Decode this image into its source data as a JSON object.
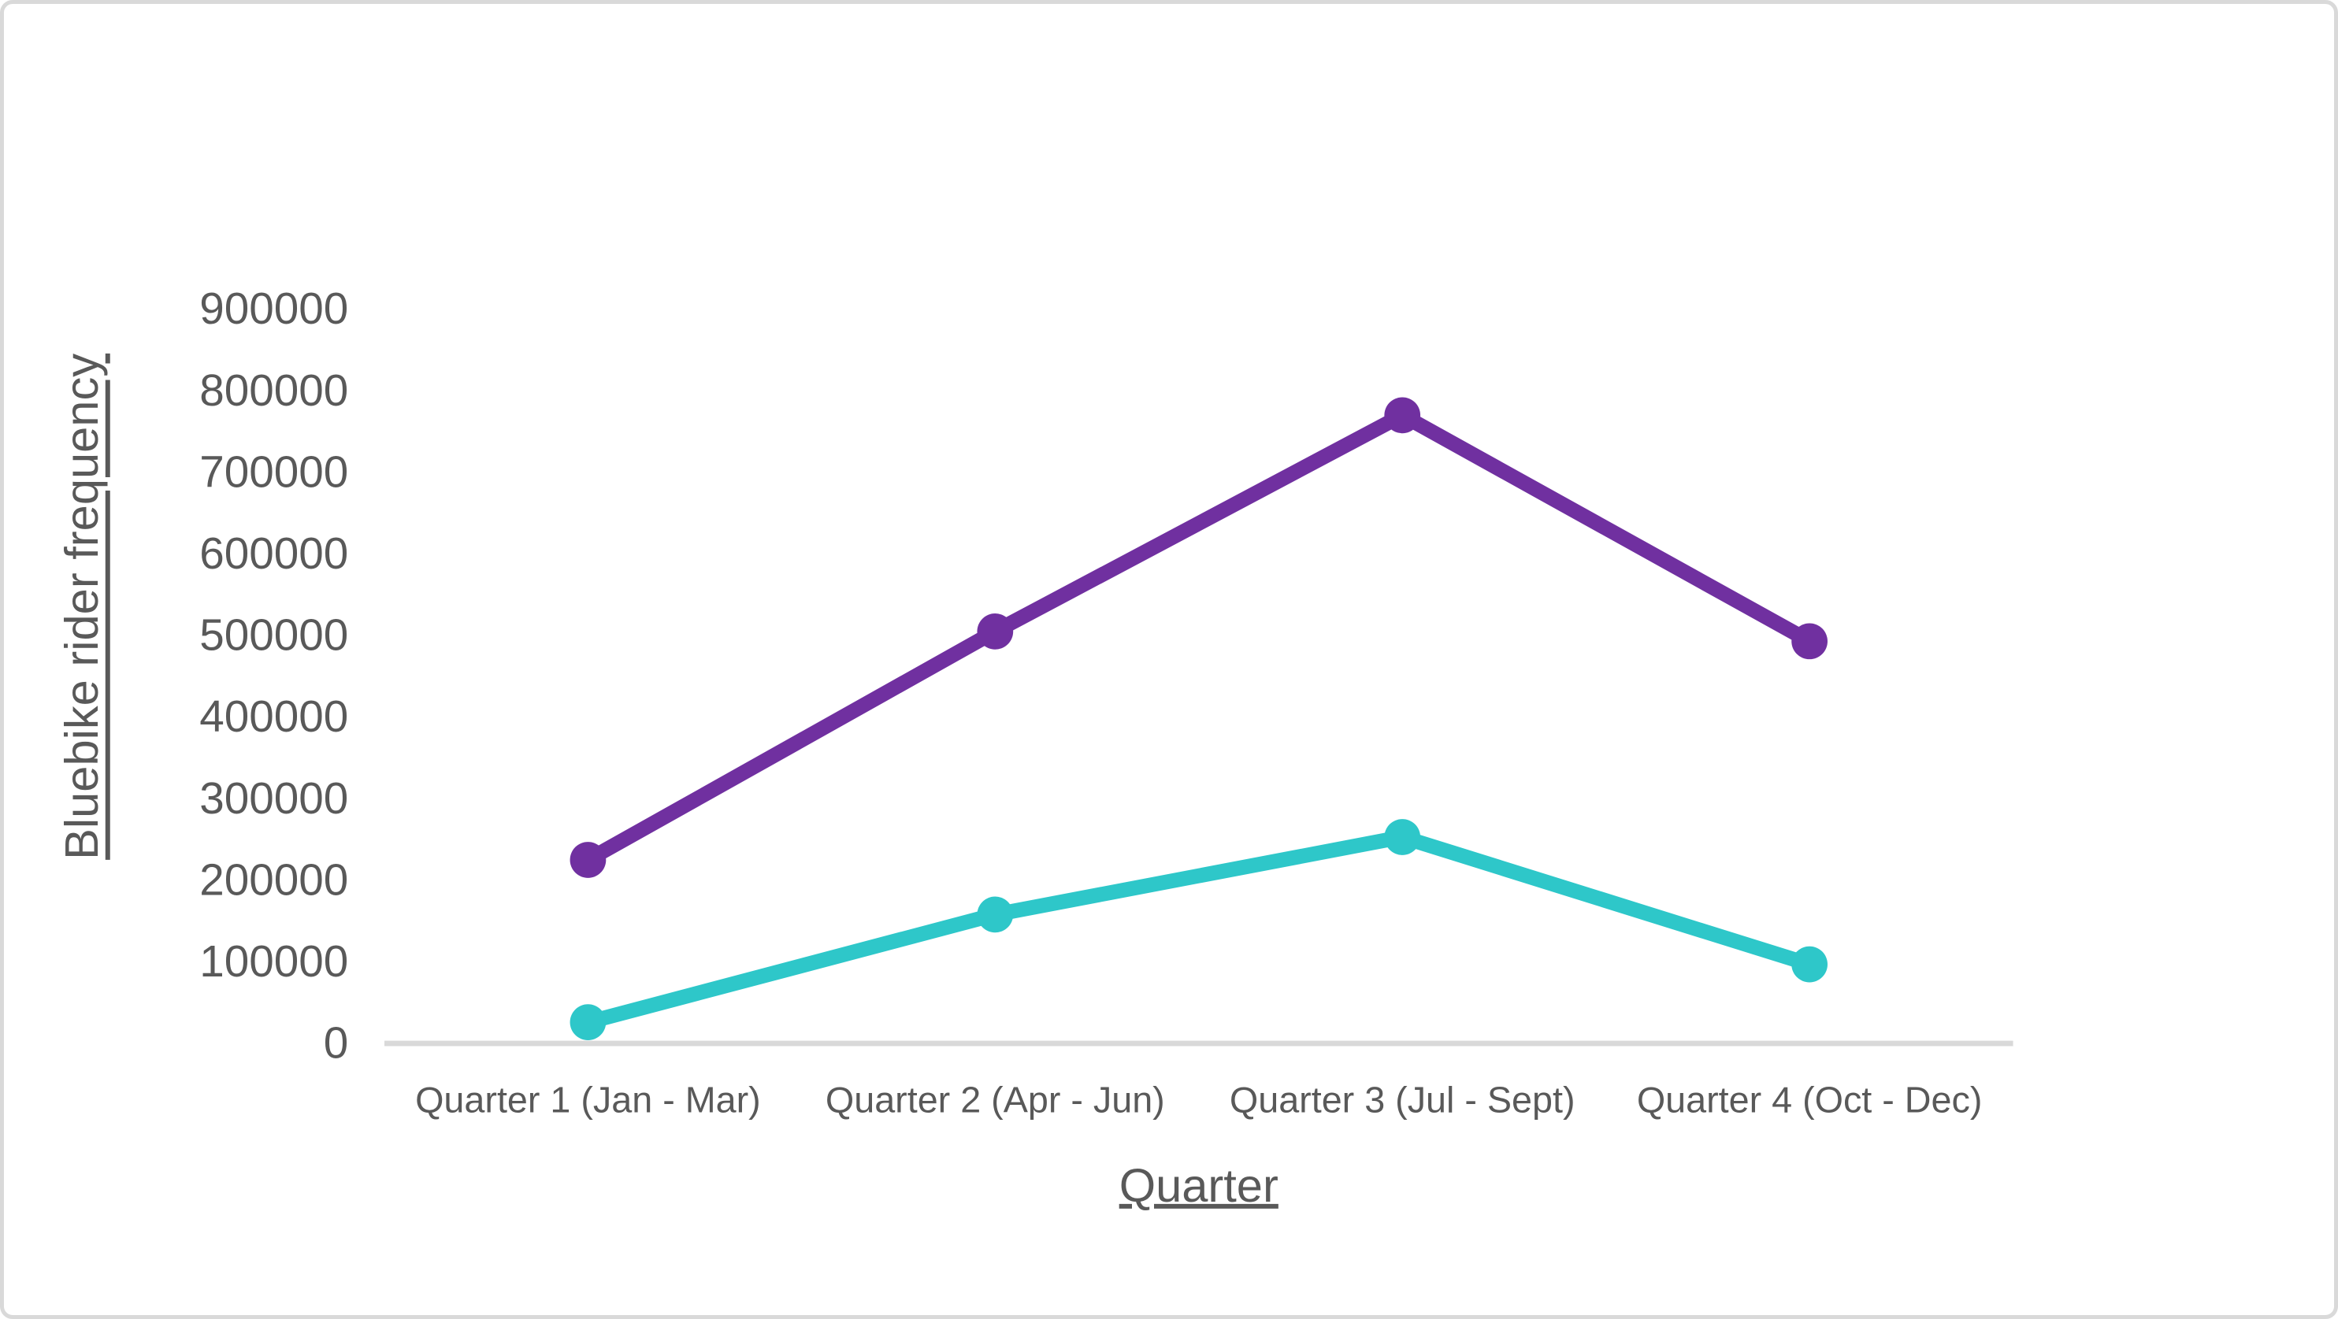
{
  "chart": {
    "y_axis_title": "Bluebike rider frequency",
    "x_axis_title": "Quarter",
    "text_color": "#595959",
    "axis_line_color": "#D9D9D9",
    "background_color": "#FFFFFF",
    "border_color": "#D9D9D9"
  },
  "chart_data": {
    "type": "line",
    "title": "",
    "xlabel": "Quarter",
    "ylabel": "Bluebike rider frequency",
    "categories": [
      "Quarter 1 (Jan - Mar)",
      "Quarter 2 (Apr - Jun)",
      "Quarter 3 (Jul - Sept)",
      "Quarter 4 (Oct - Dec)"
    ],
    "series": [
      {
        "name": "purple-series",
        "color": "#7030A0",
        "values": [
          225000,
          505000,
          770000,
          493000
        ]
      },
      {
        "name": "teal-series",
        "color": "#2EC7C9",
        "values": [
          26000,
          158000,
          253000,
          97000
        ]
      }
    ],
    "ylim": [
      0,
      900000
    ],
    "ytick_step": 100000,
    "ytick_labels": [
      "0",
      "100000",
      "200000",
      "300000",
      "400000",
      "500000",
      "600000",
      "700000",
      "800000",
      "900000"
    ],
    "grid": false,
    "legend_position": "none",
    "markers": true
  }
}
